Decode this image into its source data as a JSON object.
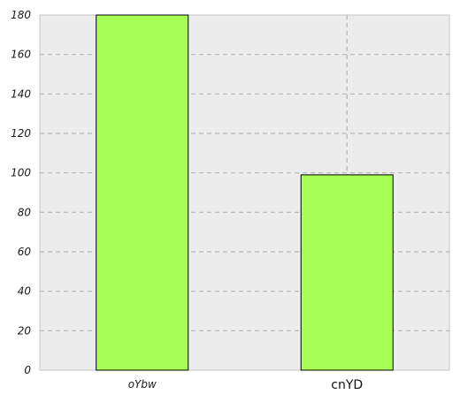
{
  "chart_data": {
    "type": "bar",
    "categories": [
      "oYbw",
      "cnYD"
    ],
    "values": [
      180,
      99
    ],
    "title": "",
    "xlabel": "",
    "ylabel": "",
    "ylim": [
      0,
      180
    ],
    "yticks": [
      0,
      20,
      40,
      60,
      80,
      100,
      120,
      140,
      160,
      180
    ],
    "grid": true,
    "grid_style": "dashed",
    "bar_color": "#a6ff52",
    "bar_edge_color": "#000000",
    "plot_background": "#ececec"
  }
}
